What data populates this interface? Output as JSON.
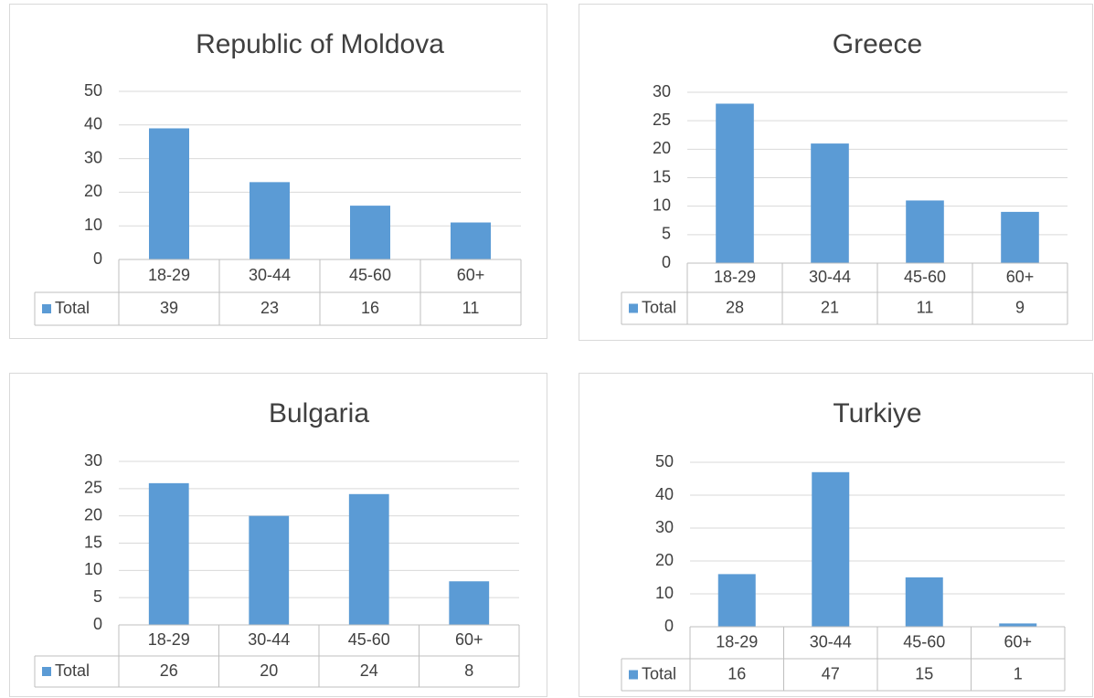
{
  "chart_data": [
    {
      "type": "bar",
      "title": "Republic of Moldova",
      "categories": [
        "18-29",
        "30-44",
        "45-60",
        "60+"
      ],
      "series": [
        {
          "name": "Total",
          "color": "#5b9bd5",
          "values": [
            39,
            23,
            16,
            11
          ]
        }
      ],
      "ylim": [
        0,
        50
      ],
      "yticks": [
        0,
        10,
        20,
        30,
        40,
        50
      ],
      "grid": true,
      "data_table": true
    },
    {
      "type": "bar",
      "title": "Greece",
      "categories": [
        "18-29",
        "30-44",
        "45-60",
        "60+"
      ],
      "series": [
        {
          "name": "Total",
          "color": "#5b9bd5",
          "values": [
            28,
            21,
            11,
            9
          ]
        }
      ],
      "ylim": [
        0,
        30
      ],
      "yticks": [
        0,
        5,
        10,
        15,
        20,
        25,
        30
      ],
      "grid": true,
      "data_table": true
    },
    {
      "type": "bar",
      "title": "Bulgaria",
      "categories": [
        "18-29",
        "30-44",
        "45-60",
        "60+"
      ],
      "series": [
        {
          "name": "Total",
          "color": "#5b9bd5",
          "values": [
            26,
            20,
            24,
            8
          ]
        }
      ],
      "ylim": [
        0,
        30
      ],
      "yticks": [
        0,
        5,
        10,
        15,
        20,
        25,
        30
      ],
      "grid": true,
      "data_table": true
    },
    {
      "type": "bar",
      "title": "Turkiye",
      "categories": [
        "18-29",
        "30-44",
        "45-60",
        "60+"
      ],
      "series": [
        {
          "name": "Total",
          "color": "#5b9bd5",
          "values": [
            16,
            47,
            15,
            1
          ]
        }
      ],
      "ylim": [
        0,
        50
      ],
      "yticks": [
        0,
        10,
        20,
        30,
        40,
        50
      ],
      "grid": true,
      "data_table": true
    }
  ]
}
